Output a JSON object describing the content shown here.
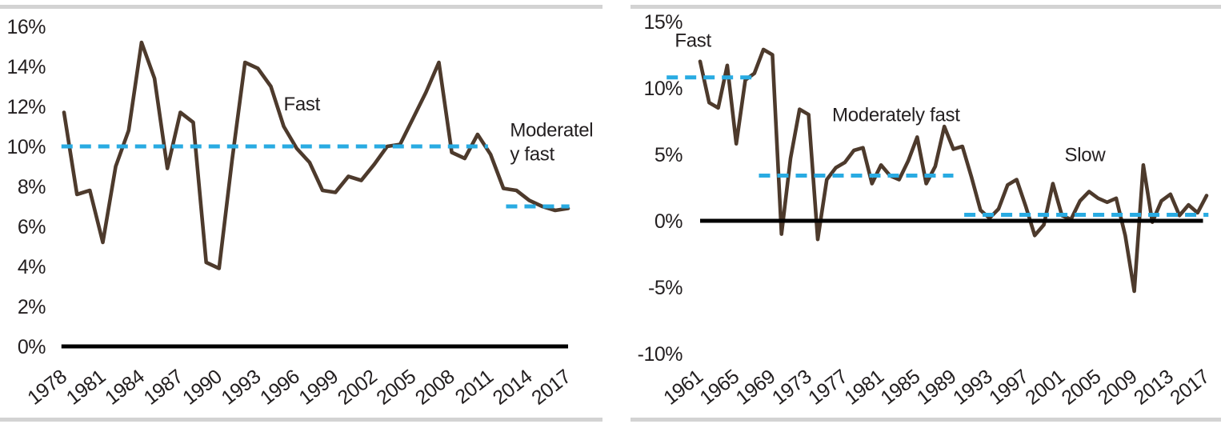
{
  "colors": {
    "line": "#4d3a2c",
    "trend": "#29abe2",
    "axis": "#000000",
    "rule": "#d3d3d3",
    "text": "#231f20"
  },
  "chart_data": [
    {
      "id": "left",
      "type": "line",
      "title": "",
      "ylabel": "",
      "xlabel": "",
      "ylim": [
        0,
        16
      ],
      "xlim": [
        1978,
        2017
      ],
      "grid": false,
      "legend": false,
      "y_ticks": [
        {
          "label": "16%",
          "value": 16
        },
        {
          "label": "14%",
          "value": 14
        },
        {
          "label": "12%",
          "value": 12
        },
        {
          "label": "10%",
          "value": 10
        },
        {
          "label": "8%",
          "value": 8
        },
        {
          "label": "6%",
          "value": 6
        },
        {
          "label": "4%",
          "value": 4
        },
        {
          "label": "2%",
          "value": 2
        },
        {
          "label": "0%",
          "value": 0
        }
      ],
      "x_ticks": [
        "1978",
        "1981",
        "1984",
        "1987",
        "1990",
        "1993",
        "1996",
        "1999",
        "2002",
        "2005",
        "2008",
        "2011",
        "2014",
        "2017"
      ],
      "series": [
        {
          "name": "gdp-growth",
          "x_start": 1978,
          "values": [
            11.7,
            7.6,
            7.8,
            5.2,
            9.0,
            10.8,
            15.2,
            13.4,
            8.9,
            11.7,
            11.2,
            4.2,
            3.9,
            9.3,
            14.2,
            13.9,
            13.0,
            11.0,
            9.9,
            9.2,
            7.8,
            7.7,
            8.5,
            8.3,
            9.1,
            10.0,
            10.1,
            11.4,
            12.7,
            14.2,
            9.7,
            9.4,
            10.6,
            9.6,
            7.9,
            7.8,
            7.3,
            7.0,
            6.8,
            6.9
          ]
        }
      ],
      "axis_line": {
        "value": 0,
        "year_start": 1977.8,
        "year_end": 2017.0
      },
      "trend_lines": [
        {
          "name": "fast",
          "value": 10.0,
          "year_start": 1977.8,
          "year_end": 2010.8
        },
        {
          "name": "moderately-fast",
          "value": 7.0,
          "year_start": 2012.2,
          "year_end": 2017.1
        }
      ],
      "annotations": [
        {
          "name": "fast-label",
          "lines": [
            "Fast"
          ],
          "year": 1996.4,
          "value": 11.8,
          "anchor": "middle"
        },
        {
          "name": "moderately-fast-label",
          "lines": [
            "Moderatel",
            "y fast"
          ],
          "year": 2012.5,
          "value": 10.5,
          "anchor": "start"
        }
      ]
    },
    {
      "id": "right",
      "type": "line",
      "title": "",
      "ylabel": "",
      "xlabel": "",
      "ylim": [
        -10,
        15
      ],
      "xlim": [
        1961,
        2017
      ],
      "grid": false,
      "legend": false,
      "y_ticks": [
        {
          "label": "15%",
          "value": 15
        },
        {
          "label": "10%",
          "value": 10
        },
        {
          "label": "5%",
          "value": 5
        },
        {
          "label": "0%",
          "value": 0
        },
        {
          "label": "-5%",
          "value": -5
        },
        {
          "label": "-10%",
          "value": -10
        }
      ],
      "x_ticks": [
        "1961",
        "1965",
        "1969",
        "1973",
        "1977",
        "1981",
        "1985",
        "1989",
        "1993",
        "1997",
        "2001",
        "2005",
        "2009",
        "2013",
        "2017"
      ],
      "series": [
        {
          "name": "gdp-growth",
          "x_start": 1961,
          "values": [
            12.0,
            8.9,
            8.5,
            11.7,
            5.8,
            10.6,
            11.1,
            12.9,
            12.5,
            -1.0,
            4.7,
            8.4,
            8.0,
            -1.4,
            3.1,
            4.0,
            4.4,
            5.3,
            5.5,
            2.8,
            4.2,
            3.4,
            3.1,
            4.5,
            6.3,
            2.8,
            4.1,
            7.1,
            5.4,
            5.6,
            3.3,
            0.8,
            0.2,
            0.9,
            2.7,
            3.1,
            1.1,
            -1.1,
            -0.3,
            2.8,
            0.4,
            0.1,
            1.5,
            2.2,
            1.7,
            1.4,
            1.7,
            -1.1,
            -5.3,
            4.2,
            -0.1,
            1.5,
            2.0,
            0.4,
            1.2,
            0.6,
            1.9
          ]
        }
      ],
      "axis_line": {
        "value": 0,
        "year_start": 1961.0,
        "year_end": 2016.6
      },
      "trend_lines": [
        {
          "name": "fast",
          "value": 10.8,
          "year_start": 1957.3,
          "year_end": 1967.4
        },
        {
          "name": "moderately-fast",
          "value": 3.4,
          "year_start": 1967.5,
          "year_end": 1989.0
        },
        {
          "name": "slow",
          "value": 0.45,
          "year_start": 1990.2,
          "year_end": 2017.2
        }
      ],
      "annotations": [
        {
          "name": "fast-label",
          "lines": [
            "Fast"
          ],
          "year": 1958.2,
          "value": 13.1,
          "anchor": "start"
        },
        {
          "name": "moderately-fast-label",
          "lines": [
            "Moderately fast"
          ],
          "year": 1975.6,
          "value": 7.5,
          "anchor": "start"
        },
        {
          "name": "slow-label",
          "lines": [
            "Slow"
          ],
          "year": 2001.3,
          "value": 4.5,
          "anchor": "start"
        }
      ]
    }
  ]
}
